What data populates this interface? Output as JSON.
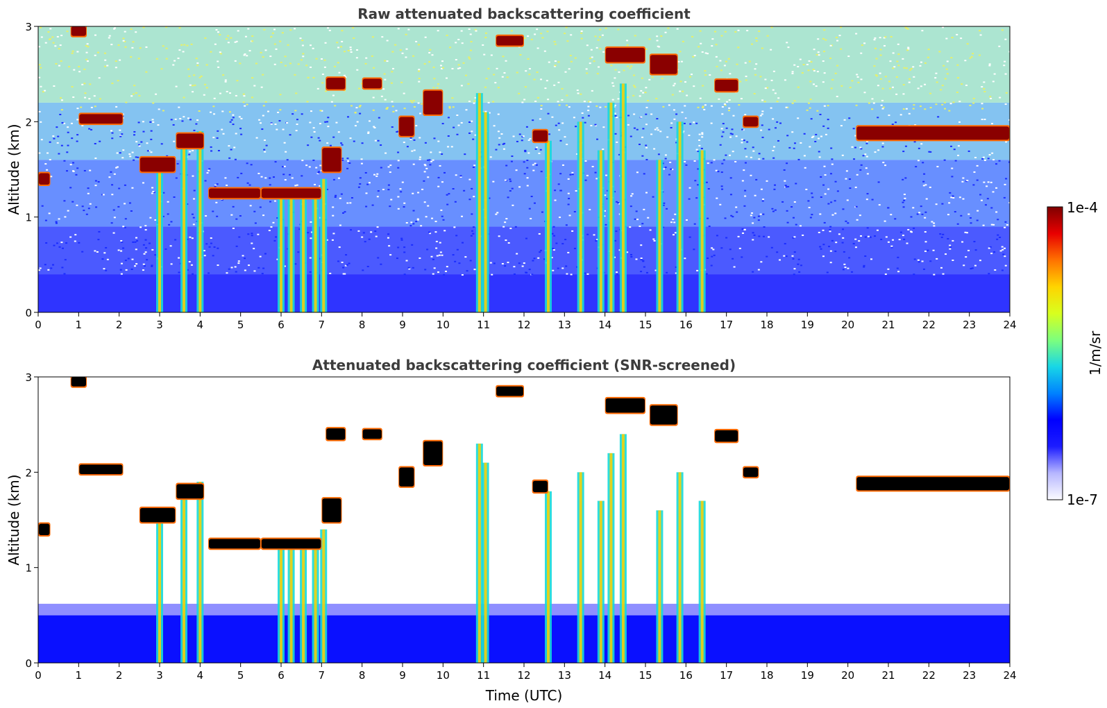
{
  "chart_data": [
    {
      "type": "heatmap",
      "title": "Raw attenuated backscattering coefficient",
      "xlabel": "",
      "ylabel": "Altitude (km)",
      "xlim": [
        0,
        24
      ],
      "ylim": [
        0,
        3
      ],
      "x_ticks": [
        0,
        1,
        2,
        3,
        4,
        5,
        6,
        7,
        8,
        9,
        10,
        11,
        12,
        13,
        14,
        15,
        16,
        17,
        18,
        19,
        20,
        21,
        22,
        23,
        24
      ],
      "y_ticks": [
        0,
        1,
        2,
        3
      ],
      "layers": [
        {
          "t_start": 0.0,
          "t_end": 0.3,
          "alt": 1.4,
          "thickness": 0.12
        },
        {
          "t_start": 0.8,
          "t_end": 1.2,
          "alt": 2.95,
          "thickness": 0.1
        },
        {
          "t_start": 1.0,
          "t_end": 2.1,
          "alt": 2.03,
          "thickness": 0.1
        },
        {
          "t_start": 2.5,
          "t_end": 3.4,
          "alt": 1.55,
          "thickness": 0.15
        },
        {
          "t_start": 3.4,
          "t_end": 4.1,
          "alt": 1.8,
          "thickness": 0.15
        },
        {
          "t_start": 4.2,
          "t_end": 5.5,
          "alt": 1.25,
          "thickness": 0.1
        },
        {
          "t_start": 5.5,
          "t_end": 7.0,
          "alt": 1.25,
          "thickness": 0.1
        },
        {
          "t_start": 7.0,
          "t_end": 7.5,
          "alt": 1.6,
          "thickness": 0.25
        },
        {
          "t_start": 7.1,
          "t_end": 7.6,
          "alt": 2.4,
          "thickness": 0.12
        },
        {
          "t_start": 8.0,
          "t_end": 8.5,
          "alt": 2.4,
          "thickness": 0.1
        },
        {
          "t_start": 8.9,
          "t_end": 9.3,
          "alt": 1.95,
          "thickness": 0.2
        },
        {
          "t_start": 9.5,
          "t_end": 10.0,
          "alt": 2.2,
          "thickness": 0.25
        },
        {
          "t_start": 11.3,
          "t_end": 12.0,
          "alt": 2.85,
          "thickness": 0.1
        },
        {
          "t_start": 12.2,
          "t_end": 12.6,
          "alt": 1.85,
          "thickness": 0.12
        },
        {
          "t_start": 14.0,
          "t_end": 15.0,
          "alt": 2.7,
          "thickness": 0.15
        },
        {
          "t_start": 15.1,
          "t_end": 15.8,
          "alt": 2.6,
          "thickness": 0.2
        },
        {
          "t_start": 16.7,
          "t_end": 17.3,
          "alt": 2.38,
          "thickness": 0.12
        },
        {
          "t_start": 17.4,
          "t_end": 17.8,
          "alt": 2.0,
          "thickness": 0.1
        },
        {
          "t_start": 20.2,
          "t_end": 24.0,
          "alt": 1.88,
          "thickness": 0.14
        }
      ],
      "plumes": [
        {
          "t": 3.0,
          "top": 1.5
        },
        {
          "t": 3.6,
          "top": 1.8
        },
        {
          "t": 4.0,
          "top": 1.9
        },
        {
          "t": 6.0,
          "top": 1.3
        },
        {
          "t": 6.25,
          "top": 1.3
        },
        {
          "t": 6.55,
          "top": 1.3
        },
        {
          "t": 6.85,
          "top": 1.3
        },
        {
          "t": 7.05,
          "top": 1.4
        },
        {
          "t": 10.9,
          "top": 2.3
        },
        {
          "t": 11.05,
          "top": 2.1
        },
        {
          "t": 12.6,
          "top": 1.8
        },
        {
          "t": 13.4,
          "top": 2.0
        },
        {
          "t": 13.9,
          "top": 1.7
        },
        {
          "t": 14.15,
          "top": 2.2
        },
        {
          "t": 14.45,
          "top": 2.4
        },
        {
          "t": 15.35,
          "top": 1.6
        },
        {
          "t": 15.85,
          "top": 2.0
        },
        {
          "t": 16.4,
          "top": 1.7
        }
      ],
      "colorscale": [
        "#fbfbff",
        "#b7b7ff",
        "#1c1cff",
        "#0000ff",
        "#0082ff",
        "#18d6e6",
        "#7dff7d",
        "#d8ff1e",
        "#ffd400",
        "#ff7200",
        "#e80000",
        "#7f0000"
      ]
    },
    {
      "type": "heatmap",
      "title": "Attenuated backscattering coefficient (SNR-screened)",
      "xlabel": "Time (UTC)",
      "ylabel": "Altitude (km)",
      "xlim": [
        0,
        24
      ],
      "ylim": [
        0,
        3
      ],
      "x_ticks": [
        0,
        1,
        2,
        3,
        4,
        5,
        6,
        7,
        8,
        9,
        10,
        11,
        12,
        13,
        14,
        15,
        16,
        17,
        18,
        19,
        20,
        21,
        22,
        23,
        24
      ],
      "y_ticks": [
        0,
        1,
        2,
        3
      ],
      "masked_color": "#ffffff",
      "saturated_color": "#000000"
    }
  ],
  "colorbar": {
    "label": "1/m/sr",
    "max_label": "1e-4",
    "min_label": "1e-7",
    "scale": "log"
  }
}
